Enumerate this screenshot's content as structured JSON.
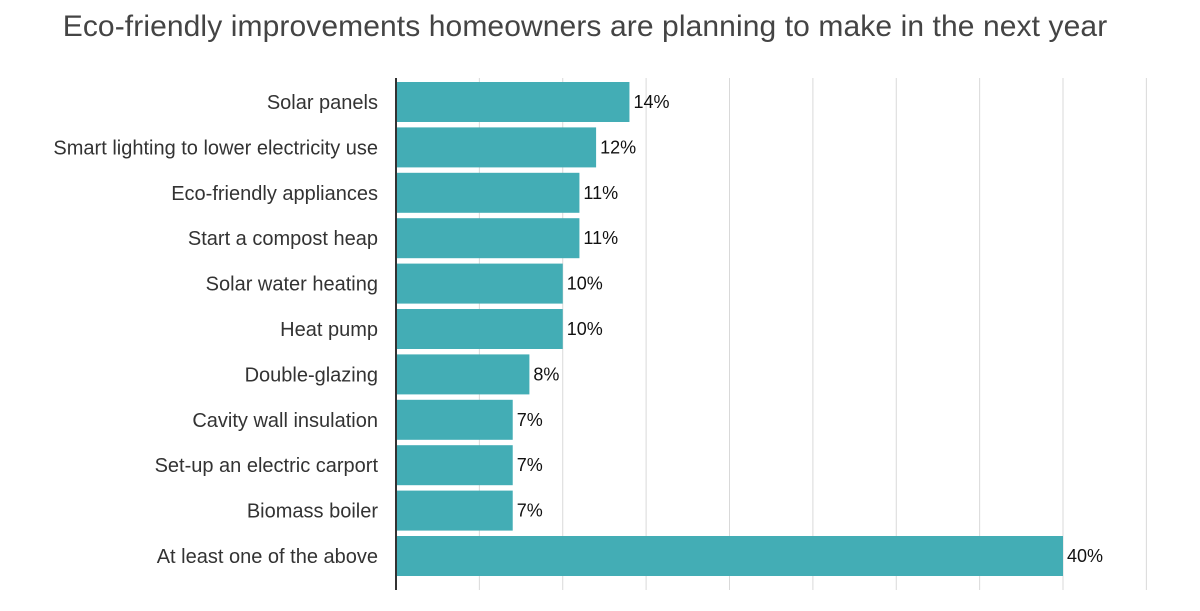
{
  "chart_data": {
    "type": "bar",
    "orientation": "horizontal",
    "title": "Eco-friendly improvements homeowners are planning to make in the next year",
    "categories": [
      "Solar panels",
      "Smart lighting to lower electricity use",
      "Eco-friendly appliances",
      "Start a compost heap",
      "Solar water heating",
      "Heat pump",
      "Double-glazing",
      "Cavity wall insulation",
      "Set-up an electric carport",
      "Biomass boiler",
      "At least one of the above"
    ],
    "values": [
      14,
      12,
      11,
      11,
      10,
      10,
      8,
      7,
      7,
      7,
      40
    ],
    "value_labels": [
      "14%",
      "12%",
      "11%",
      "11%",
      "10%",
      "10%",
      "8%",
      "7%",
      "7%",
      "7%",
      "40%"
    ],
    "xlim": [
      0,
      45
    ],
    "grid": true,
    "bar_color": "#43adb5",
    "grid_color": "#d9d9d9",
    "axis_color": "#333333"
  }
}
